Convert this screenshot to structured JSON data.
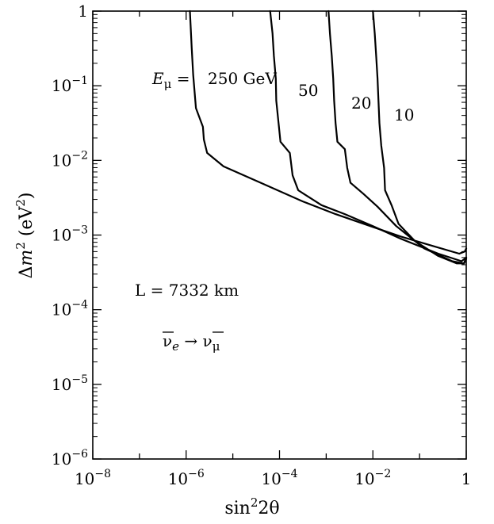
{
  "chart_data": {
    "type": "line",
    "x_scale": "log",
    "y_scale": "log",
    "xlim_log10": [
      -8,
      0
    ],
    "ylim_log10": [
      -6,
      0
    ],
    "xlabel": "sin²2θ",
    "ylabel": "Δm² (eV²)",
    "x_ticks": [
      {
        "log10": -8,
        "base": "10",
        "exp": "−8"
      },
      {
        "log10": -6,
        "base": "10",
        "exp": "−6"
      },
      {
        "log10": -4,
        "base": "10",
        "exp": "−4"
      },
      {
        "log10": -2,
        "base": "10",
        "exp": "−2"
      },
      {
        "log10": 0,
        "base": "1",
        "exp": ""
      }
    ],
    "y_ticks": [
      {
        "log10": 0,
        "base": "1",
        "exp": ""
      },
      {
        "log10": -1,
        "base": "10",
        "exp": "−1"
      },
      {
        "log10": -2,
        "base": "10",
        "exp": "−2"
      },
      {
        "log10": -3,
        "base": "10",
        "exp": "−3"
      },
      {
        "log10": -4,
        "base": "10",
        "exp": "−4"
      },
      {
        "log10": -5,
        "base": "10",
        "exp": "−5"
      },
      {
        "log10": -6,
        "base": "10",
        "exp": "−6"
      }
    ],
    "annotations": {
      "energy_prefix": "E",
      "energy_sub": "μ",
      "energy_eq": " = ",
      "baseline": "L = 7332 km",
      "channel_from": "ν",
      "channel_from_sub": "e",
      "channel_arrow": " → ",
      "channel_to": "ν",
      "channel_to_sub": "μ"
    },
    "series": [
      {
        "name": "250 GeV",
        "label": "250 GeV",
        "points": [
          [
            -5.92,
            0
          ],
          [
            -5.88,
            -0.5
          ],
          [
            -5.85,
            -0.85
          ],
          [
            -5.79,
            -1.3
          ],
          [
            -5.64,
            -1.55
          ],
          [
            -5.62,
            -1.72
          ],
          [
            -5.55,
            -1.9
          ],
          [
            -5.2,
            -2.08
          ],
          [
            -4.4,
            -2.3
          ],
          [
            -3.5,
            -2.55
          ],
          [
            -2.8,
            -2.72
          ],
          [
            -2.1,
            -2.87
          ],
          [
            -1.4,
            -3.02
          ],
          [
            -0.7,
            -3.15
          ],
          [
            -0.15,
            -3.25
          ],
          [
            -0.03,
            -3.22
          ],
          [
            0,
            -3.18
          ]
        ]
      },
      {
        "name": "50 GeV",
        "label": "50",
        "points": [
          [
            -4.2,
            0
          ],
          [
            -4.15,
            -0.3
          ],
          [
            -4.12,
            -0.6
          ],
          [
            -4.08,
            -0.9
          ],
          [
            -4.07,
            -1.2
          ],
          [
            -4.02,
            -1.5
          ],
          [
            -3.98,
            -1.75
          ],
          [
            -3.78,
            -1.9
          ],
          [
            -3.72,
            -2.2
          ],
          [
            -3.6,
            -2.4
          ],
          [
            -3.1,
            -2.6
          ],
          [
            -2.6,
            -2.72
          ],
          [
            -2.0,
            -2.88
          ],
          [
            -1.4,
            -3.05
          ],
          [
            -0.6,
            -3.25
          ],
          [
            -0.1,
            -3.35
          ],
          [
            0,
            -3.3
          ]
        ]
      },
      {
        "name": "20 GeV",
        "label": "20",
        "points": [
          [
            -2.95,
            0
          ],
          [
            -2.92,
            -0.3
          ],
          [
            -2.88,
            -0.6
          ],
          [
            -2.85,
            -0.9
          ],
          [
            -2.83,
            -1.2
          ],
          [
            -2.8,
            -1.5
          ],
          [
            -2.76,
            -1.75
          ],
          [
            -2.6,
            -1.85
          ],
          [
            -2.55,
            -2.1
          ],
          [
            -2.48,
            -2.3
          ],
          [
            -2.2,
            -2.45
          ],
          [
            -1.9,
            -2.62
          ],
          [
            -1.5,
            -2.88
          ],
          [
            -0.9,
            -3.18
          ],
          [
            -0.3,
            -3.35
          ],
          [
            -0.05,
            -3.38
          ],
          [
            0,
            -3.3
          ]
        ]
      },
      {
        "name": "10 GeV",
        "label": "10",
        "points": [
          [
            -2.0,
            0
          ],
          [
            -1.96,
            -0.3
          ],
          [
            -1.93,
            -0.6
          ],
          [
            -1.9,
            -0.9
          ],
          [
            -1.88,
            -1.2
          ],
          [
            -1.86,
            -1.5
          ],
          [
            -1.82,
            -1.8
          ],
          [
            -1.76,
            -2.1
          ],
          [
            -1.74,
            -2.4
          ],
          [
            -1.6,
            -2.6
          ],
          [
            -1.45,
            -2.85
          ],
          [
            -1.1,
            -3.08
          ],
          [
            -0.6,
            -3.28
          ],
          [
            -0.2,
            -3.38
          ],
          [
            -0.05,
            -3.38
          ],
          [
            0,
            -3.32
          ]
        ]
      }
    ]
  }
}
